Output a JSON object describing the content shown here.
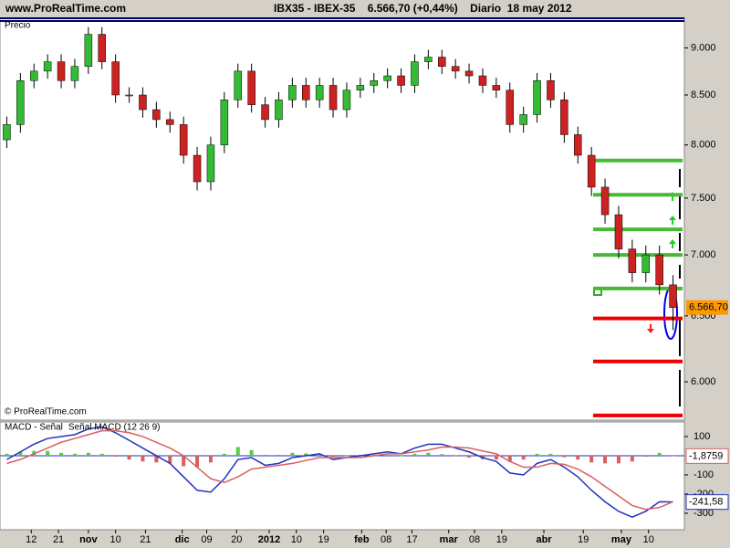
{
  "header": {
    "site": "www.ProRealTime.com",
    "title": "IBX35 - IBEX-35    6.566,70 (+0,44%)    Diario  18 may 2012"
  },
  "chart_data": [
    {
      "type": "candlestick",
      "label": "Precio",
      "credit": "© ProRealTime.com",
      "log_scale": true,
      "xlim": [
        -0.5,
        49.7
      ],
      "ylim": [
        5740,
        9330
      ],
      "xticks": [
        {
          "value": 1.8,
          "label": "12"
        },
        {
          "value": 3.8,
          "label": "21"
        },
        {
          "value": 6,
          "label": "nov"
        },
        {
          "value": 8,
          "label": "10"
        },
        {
          "value": 10.2,
          "label": "21"
        },
        {
          "value": 12.9,
          "label": "dic"
        },
        {
          "value": 14.7,
          "label": "09"
        },
        {
          "value": 16.9,
          "label": "20"
        },
        {
          "value": 19.3,
          "label": "2012"
        },
        {
          "value": 21.3,
          "label": "10"
        },
        {
          "value": 23.3,
          "label": "19"
        },
        {
          "value": 26.1,
          "label": "feb"
        },
        {
          "value": 27.9,
          "label": "08"
        },
        {
          "value": 29.8,
          "label": "17"
        },
        {
          "value": 32.5,
          "label": "mar"
        },
        {
          "value": 34.4,
          "label": "08"
        },
        {
          "value": 36.4,
          "label": "19"
        },
        {
          "value": 39.5,
          "label": "abr"
        },
        {
          "value": 42.4,
          "label": "19"
        },
        {
          "value": 45.2,
          "label": "may"
        },
        {
          "value": 47.2,
          "label": "10"
        }
      ],
      "yticks": [
        {
          "value": 9000,
          "label": "9.000"
        },
        {
          "value": 8500,
          "label": "8.500"
        },
        {
          "value": 8000,
          "label": "8.000"
        },
        {
          "value": 7500,
          "label": "7.500"
        },
        {
          "value": 7000,
          "label": "7.000"
        },
        {
          "value": 6500,
          "label": "6.500"
        },
        {
          "value": 6000,
          "label": "6.000"
        }
      ],
      "up_color": "#33bb33",
      "down_color": "#cc2222",
      "open": [
        8050,
        8200,
        8650,
        8750,
        8850,
        8650,
        8800,
        9150,
        8850,
        8500,
        8500,
        8350,
        8250,
        8200,
        7900,
        7650,
        8000,
        8450,
        8750,
        8400,
        8250,
        8450,
        8600,
        8450,
        8600,
        8350,
        8550,
        8600,
        8650,
        8700,
        8600,
        8850,
        8900,
        8800,
        8750,
        8700,
        8600,
        8550,
        8200,
        8300,
        8650,
        8450,
        8100,
        7900,
        7600,
        7350,
        7050,
        6850,
        7000,
        6750
      ],
      "high": [
        8280,
        8730,
        8830,
        8930,
        8930,
        8880,
        9230,
        9230,
        8930,
        8580,
        8580,
        8430,
        8330,
        8280,
        7980,
        8080,
        8530,
        8830,
        8830,
        8480,
        8530,
        8680,
        8680,
        8680,
        8680,
        8630,
        8680,
        8730,
        8780,
        8780,
        8930,
        8980,
        8980,
        8880,
        8830,
        8780,
        8680,
        8630,
        8380,
        8730,
        8730,
        8530,
        8180,
        7980,
        7680,
        7430,
        7130,
        7080,
        7080,
        6830
      ],
      "low": [
        7970,
        8120,
        8570,
        8670,
        8570,
        8570,
        8720,
        8770,
        8420,
        8420,
        8270,
        8170,
        8120,
        7820,
        7570,
        7570,
        7920,
        8370,
        8320,
        8170,
        8170,
        8370,
        8370,
        8370,
        8270,
        8270,
        8470,
        8520,
        8570,
        8520,
        8520,
        8770,
        8720,
        8670,
        8620,
        8520,
        8470,
        8120,
        8120,
        8220,
        8370,
        8020,
        7820,
        7520,
        7270,
        6970,
        6770,
        6770,
        6670,
        6390
      ],
      "close": [
        8200,
        8650,
        8750,
        8850,
        8650,
        8800,
        9150,
        8850,
        8500,
        8500,
        8350,
        8250,
        8200,
        7900,
        7650,
        8000,
        8450,
        8750,
        8400,
        8250,
        8450,
        8600,
        8450,
        8600,
        8350,
        8550,
        8600,
        8650,
        8700,
        8600,
        8850,
        8900,
        8800,
        8750,
        8700,
        8600,
        8550,
        8200,
        8300,
        8650,
        8450,
        8100,
        7900,
        7600,
        7350,
        7050,
        6850,
        7000,
        6750,
        6566.7
      ],
      "last_label": "6.566,70",
      "last_color": "#ff9900",
      "levels": [
        {
          "value": 7850,
          "color": "#44bb33"
        },
        {
          "value": 7530,
          "color": "#44bb33"
        },
        {
          "value": 7220,
          "color": "#44bb33"
        },
        {
          "value": 7000,
          "color": "#44bb33"
        },
        {
          "value": 6720,
          "color": "#44bb33"
        },
        {
          "value": 6480,
          "color": "#ee0000"
        },
        {
          "value": 6150,
          "color": "#ee0000"
        },
        {
          "value": 5760,
          "color": "#ee0000"
        }
      ]
    },
    {
      "type": "line",
      "ylim": [
        -386,
        176
      ],
      "yticks": [
        100,
        -100,
        -200,
        -300
      ],
      "series": [
        {
          "name": "MACD - Señal",
          "color": "#d96060",
          "kind": "bar",
          "values": [
            10,
            20,
            25,
            25,
            15,
            10,
            15,
            10,
            -5,
            -20,
            -30,
            -35,
            -40,
            -55,
            -60,
            -35,
            10,
            45,
            30,
            5,
            5,
            15,
            12,
            10,
            -5,
            0,
            5,
            5,
            5,
            0,
            10,
            15,
            8,
            -3,
            -10,
            -18,
            -20,
            -30,
            -20,
            10,
            10,
            -8,
            -20,
            -35,
            -40,
            -40,
            -30,
            -5,
            15,
            -1.8759
          ],
          "last_label": "-1,8759"
        },
        {
          "name": "Señal MACD (12 26 9)",
          "color": "#2233bb",
          "values": [
            -20,
            20,
            60,
            90,
            100,
            110,
            140,
            150,
            120,
            80,
            40,
            0,
            -40,
            -110,
            -180,
            -190,
            -120,
            -20,
            -10,
            -50,
            -40,
            -10,
            0,
            10,
            -20,
            -10,
            0,
            10,
            20,
            10,
            40,
            60,
            60,
            40,
            20,
            -10,
            -30,
            -90,
            -100,
            -40,
            -20,
            -60,
            -110,
            -180,
            -240,
            -290,
            -320,
            -290,
            -240,
            -241.58
          ],
          "last_label": "-241,58"
        },
        {
          "color": "#d96060",
          "values": [
            -40,
            -20,
            10,
            40,
            70,
            90,
            110,
            130,
            130,
            120,
            100,
            70,
            40,
            0,
            -60,
            -120,
            -140,
            -110,
            -70,
            -60,
            -50,
            -40,
            -25,
            -10,
            -10,
            -10,
            -10,
            0,
            10,
            10,
            20,
            30,
            45,
            45,
            40,
            25,
            10,
            -30,
            -60,
            -60,
            -40,
            -45,
            -70,
            -110,
            -160,
            -210,
            -260,
            -280,
            -270,
            -239.7
          ]
        }
      ]
    }
  ]
}
